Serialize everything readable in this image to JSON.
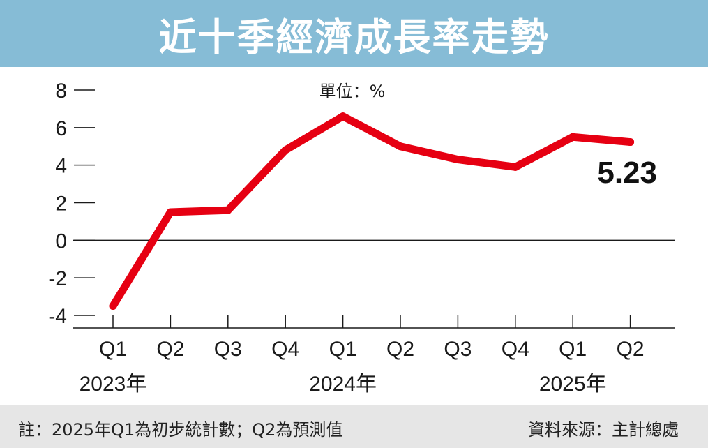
{
  "title": "近十季經濟成長率走勢",
  "unit_label": "單位：%",
  "footer": {
    "note": "註：2025年Q1為初步統計數；Q2為預測值",
    "source": "資料來源：主計總處"
  },
  "colors": {
    "title_bar": "#86bcd6",
    "line": "#e60012",
    "footer_bg": "#e6e6e6"
  },
  "chart_data": {
    "type": "line",
    "title": "近十季經濟成長率走勢",
    "ylabel": "單位：%",
    "ylim": [
      -4,
      8
    ],
    "yticks": [
      8,
      6,
      4,
      2,
      0,
      -2,
      -4
    ],
    "ytick_labels": [
      "8",
      "6",
      "4",
      "2",
      "0",
      "-2",
      "-4"
    ],
    "categories": [
      "Q1",
      "Q2",
      "Q3",
      "Q4",
      "Q1",
      "Q2",
      "Q3",
      "Q4",
      "Q1",
      "Q2"
    ],
    "year_labels": [
      {
        "label": "2023年",
        "category_index": 0
      },
      {
        "label": "2024年",
        "category_index": 4
      },
      {
        "label": "2025年",
        "category_index": 8
      }
    ],
    "series": [
      {
        "values": [
          -3.5,
          1.5,
          1.6,
          4.8,
          6.6,
          5.0,
          4.3,
          3.9,
          5.5,
          5.23
        ]
      }
    ],
    "annotations": [
      {
        "text": "5.23",
        "category_index": 9
      }
    ],
    "grid": false
  }
}
